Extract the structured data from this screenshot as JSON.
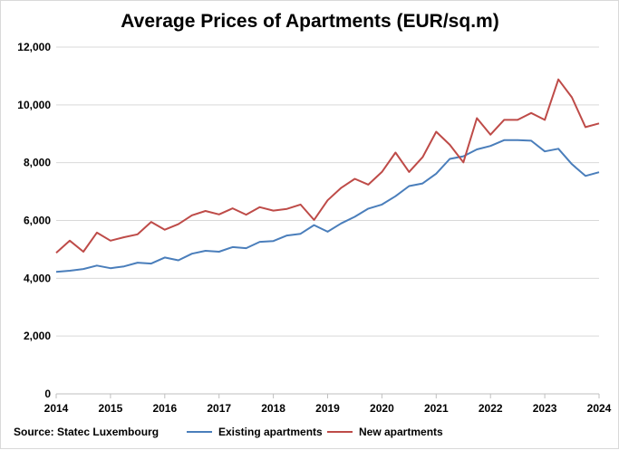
{
  "chart_data": {
    "type": "line",
    "title": "Average Prices of Apartments (EUR/sq.m)",
    "source": "Source: Statec Luxembourg",
    "xlabel": "",
    "ylabel": "",
    "xlim": [
      2014,
      2024
    ],
    "ylim": [
      0,
      12000
    ],
    "x_ticks": [
      "2014",
      "2015",
      "2016",
      "2017",
      "2018",
      "2019",
      "2020",
      "2021",
      "2022",
      "2023",
      "2024"
    ],
    "y_ticks": [
      "0",
      "2,000",
      "4,000",
      "6,000",
      "8,000",
      "10,000",
      "12,000"
    ],
    "y_tick_values": [
      0,
      2000,
      4000,
      6000,
      8000,
      10000,
      12000
    ],
    "grid": true,
    "legend_position": "bottom",
    "x_step": 0.25,
    "series": [
      {
        "name": "Existing apartments",
        "color": "#4a7ebb",
        "values": [
          4220,
          4260,
          4320,
          4440,
          4350,
          4410,
          4540,
          4510,
          4720,
          4620,
          4850,
          4950,
          4920,
          5080,
          5040,
          5260,
          5290,
          5480,
          5540,
          5840,
          5610,
          5900,
          6130,
          6410,
          6550,
          6840,
          7190,
          7280,
          7620,
          8130,
          8220,
          8460,
          8580,
          8780,
          8780,
          8760,
          8390,
          8480,
          7950,
          7540,
          7670
        ]
      },
      {
        "name": "New apartments",
        "color": "#be4b48",
        "values": [
          4880,
          5300,
          4920,
          5580,
          5300,
          5420,
          5520,
          5950,
          5680,
          5870,
          6180,
          6330,
          6210,
          6420,
          6200,
          6460,
          6340,
          6400,
          6550,
          6020,
          6700,
          7130,
          7440,
          7240,
          7680,
          8350,
          7680,
          8190,
          9070,
          8620,
          8010,
          9540,
          8970,
          9480,
          9480,
          9720,
          9480,
          10880,
          10260,
          9230,
          9360
        ]
      }
    ]
  }
}
